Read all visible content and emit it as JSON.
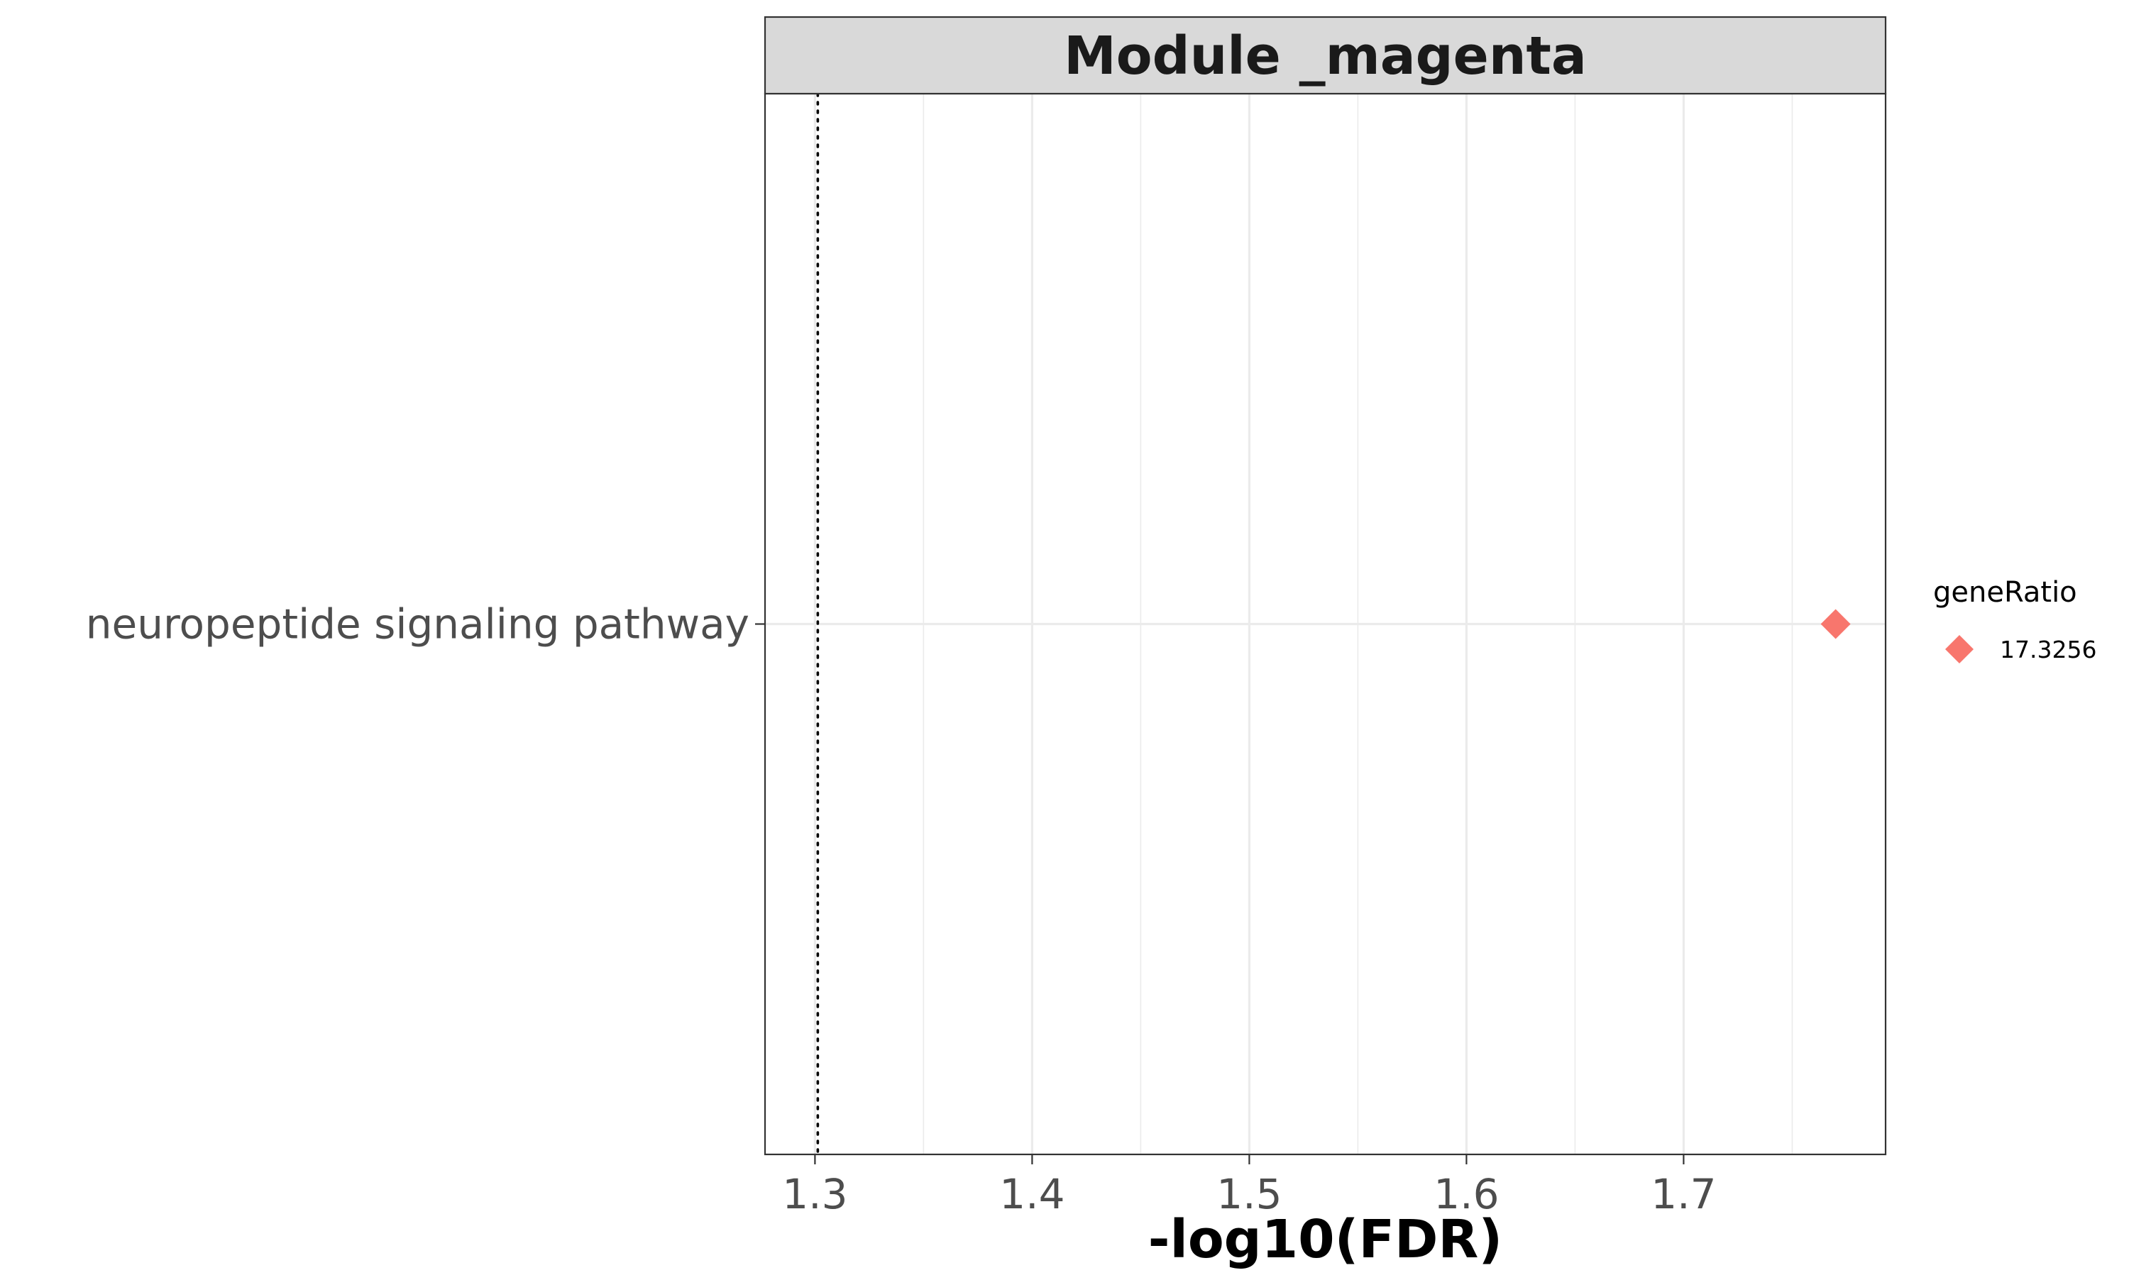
{
  "chart_data": {
    "type": "scatter",
    "facet_title": "Module _magenta",
    "xlabel": "-log10(FDR)",
    "ylabel": "",
    "xlim": [
      1.277,
      1.793
    ],
    "x_ticks": [
      1.3,
      1.4,
      1.5,
      1.6,
      1.7
    ],
    "x_tick_labels": [
      "1.3",
      "1.4",
      "1.5",
      "1.6",
      "1.7"
    ],
    "x_minor_ticks": [
      1.35,
      1.45,
      1.55,
      1.65,
      1.75
    ],
    "categories": [
      "neuropeptide signaling pathway"
    ],
    "points": [
      {
        "category": "neuropeptide signaling pathway",
        "x": 1.77,
        "geneRatio": 17.3256
      }
    ],
    "reference_line": {
      "x": 1.3013,
      "style": "dotted"
    },
    "grid": true,
    "legend": {
      "title": "geneRatio",
      "position": "right",
      "entries": [
        {
          "label": "17.3256",
          "marker": "diamond",
          "color": "#F8766D"
        }
      ]
    },
    "colors": {
      "point": "#F8766D",
      "strip_fill": "#D9D9D9",
      "panel_border": "#333333",
      "grid": "#EBEBEB",
      "tick_text": "#4D4D4D"
    }
  }
}
